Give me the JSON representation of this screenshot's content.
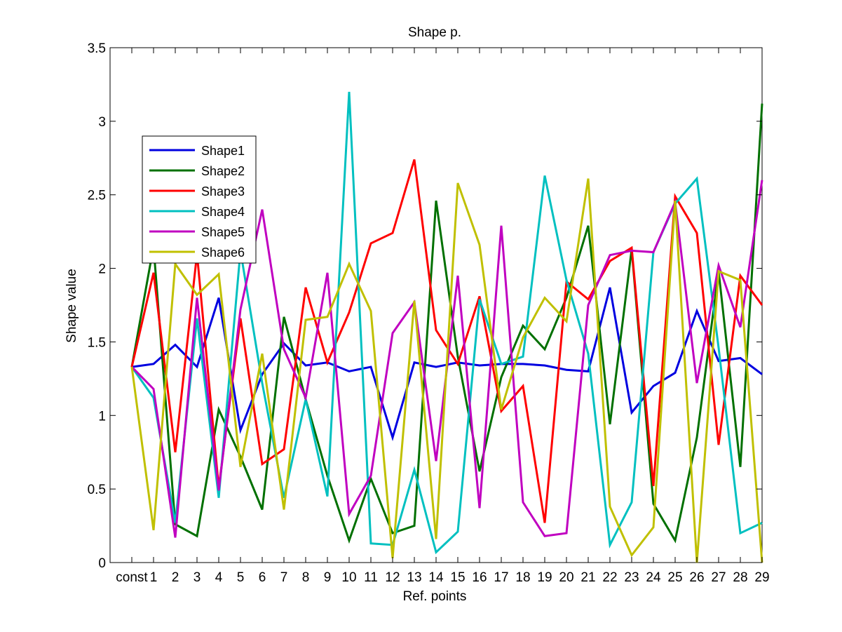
{
  "chart_data": {
    "type": "line",
    "title": "Shape p.",
    "xlabel": "Ref. points",
    "ylabel": "Shape value",
    "categories": [
      "const",
      "1",
      "2",
      "3",
      "4",
      "5",
      "6",
      "7",
      "8",
      "9",
      "10",
      "11",
      "12",
      "13",
      "14",
      "15",
      "16",
      "17",
      "18",
      "19",
      "20",
      "21",
      "22",
      "23",
      "24",
      "25",
      "26",
      "27",
      "28",
      "29"
    ],
    "ylim": [
      0,
      3.5
    ],
    "yticks": [
      "0",
      "0.5",
      "1",
      "1.5",
      "2",
      "2.5",
      "3",
      "3.5"
    ],
    "grid": false,
    "legend_position": "upper-left",
    "series": [
      {
        "name": "Shape1",
        "color": "#0000e0",
        "values": [
          1.33,
          1.35,
          1.48,
          1.33,
          1.8,
          0.9,
          1.28,
          1.49,
          1.34,
          1.36,
          1.3,
          1.33,
          0.85,
          1.36,
          1.33,
          1.36,
          1.34,
          1.35,
          1.35,
          1.34,
          1.31,
          1.3,
          1.87,
          1.02,
          1.2,
          1.29,
          1.71,
          1.37,
          1.39,
          1.28
        ]
      },
      {
        "name": "Shape2",
        "color": "#007000",
        "values": [
          1.33,
          2.15,
          0.26,
          0.18,
          1.04,
          0.72,
          0.36,
          1.67,
          1.11,
          0.59,
          0.15,
          0.57,
          0.2,
          0.25,
          2.46,
          1.4,
          0.62,
          1.26,
          1.61,
          1.45,
          1.8,
          2.29,
          0.94,
          2.13,
          0.4,
          0.15,
          0.85,
          1.98,
          0.65,
          3.12
        ]
      },
      {
        "name": "Shape3",
        "color": "#ff0000",
        "values": [
          1.33,
          1.97,
          0.75,
          2.1,
          0.51,
          1.66,
          0.67,
          0.77,
          1.87,
          1.36,
          1.7,
          2.17,
          2.24,
          2.74,
          1.58,
          1.35,
          1.81,
          1.03,
          1.2,
          0.27,
          1.91,
          1.79,
          2.05,
          2.14,
          0.52,
          2.49,
          2.24,
          0.8,
          1.95,
          1.75
        ]
      },
      {
        "name": "Shape4",
        "color": "#00c0c0",
        "values": [
          1.33,
          1.12,
          0.27,
          1.66,
          0.44,
          2.12,
          1.22,
          0.44,
          1.11,
          0.45,
          3.2,
          0.13,
          0.12,
          0.63,
          0.07,
          0.21,
          1.79,
          1.35,
          1.4,
          2.63,
          1.92,
          1.42,
          0.12,
          0.41,
          2.11,
          2.44,
          2.61,
          1.46,
          0.2,
          0.27
        ]
      },
      {
        "name": "Shape5",
        "color": "#c000c0",
        "values": [
          1.33,
          1.18,
          0.17,
          1.8,
          0.49,
          1.72,
          2.4,
          1.45,
          1.12,
          1.97,
          0.33,
          0.59,
          1.56,
          1.77,
          0.69,
          1.95,
          0.37,
          2.29,
          0.41,
          0.18,
          0.2,
          1.75,
          2.09,
          2.12,
          2.11,
          2.45,
          1.22,
          2.02,
          1.6,
          2.6
        ]
      },
      {
        "name": "Shape6",
        "color": "#c0c000",
        "values": [
          1.33,
          0.22,
          2.03,
          1.82,
          1.96,
          0.65,
          1.42,
          0.36,
          1.65,
          1.67,
          2.03,
          1.71,
          0.03,
          1.78,
          0.16,
          2.58,
          2.16,
          1.04,
          1.53,
          1.8,
          1.64,
          2.61,
          0.38,
          0.05,
          0.24,
          2.46,
          0.0,
          1.98,
          1.92,
          0.0
        ]
      }
    ]
  }
}
